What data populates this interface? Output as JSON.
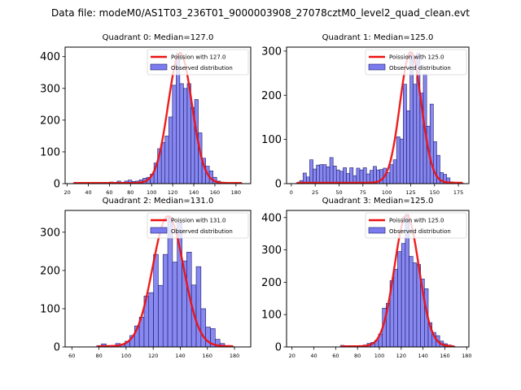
{
  "suptitle": "Data file: modeM0/AS1T03_236T01_9000003908_27078cztM0_level2_quad_clean.evt",
  "colors": {
    "bar_fill": "#7b7bf0",
    "bar_edge": "#1a1a66",
    "line": "#ee1111"
  },
  "chart_data": [
    {
      "type": "bar",
      "title": "Quadrant 0: Median=127.0",
      "legend": [
        "Poission with 127.0",
        "Observed distribution"
      ],
      "legend_placement": "top-right",
      "xlim": [
        18,
        194
      ],
      "ylim": [
        0,
        430
      ],
      "xticks": [
        20,
        40,
        60,
        80,
        100,
        120,
        140,
        160,
        180
      ],
      "yticks": [
        0,
        100,
        200,
        300,
        400
      ],
      "bin_width": 3.5,
      "bins": [
        [
          27,
          1
        ],
        [
          30.5,
          1
        ],
        [
          34,
          1
        ],
        [
          37.5,
          1
        ],
        [
          41,
          1
        ],
        [
          44.5,
          2
        ],
        [
          48,
          2
        ],
        [
          51.5,
          2
        ],
        [
          55,
          3
        ],
        [
          58.5,
          3
        ],
        [
          62,
          5
        ],
        [
          65.5,
          3
        ],
        [
          69,
          8
        ],
        [
          72.5,
          4
        ],
        [
          76,
          8
        ],
        [
          79.5,
          11
        ],
        [
          83,
          7
        ],
        [
          86.5,
          8
        ],
        [
          90,
          12
        ],
        [
          93.5,
          17
        ],
        [
          97,
          20
        ],
        [
          100.5,
          30
        ],
        [
          104,
          65
        ],
        [
          107.5,
          110
        ],
        [
          111,
          130
        ],
        [
          114.5,
          150
        ],
        [
          118,
          210
        ],
        [
          121.5,
          310
        ],
        [
          125,
          410
        ],
        [
          128.5,
          315
        ],
        [
          132,
          300
        ],
        [
          135.5,
          315
        ],
        [
          139,
          240
        ],
        [
          142.5,
          265
        ],
        [
          146,
          160
        ],
        [
          149.5,
          80
        ],
        [
          153,
          55
        ],
        [
          156.5,
          40
        ],
        [
          160,
          20
        ],
        [
          163.5,
          8
        ],
        [
          167,
          4
        ],
        [
          170.5,
          2
        ],
        [
          174,
          1
        ],
        [
          177.5,
          1
        ],
        [
          181,
          1
        ],
        [
          184.5,
          1
        ]
      ],
      "poisson_mean": 127.0,
      "poisson_peak": 410
    },
    {
      "type": "bar",
      "title": "Quadrant 1: Median=125.0",
      "legend": [
        "Poission with 125.0",
        "Observed distribution"
      ],
      "legend_placement": "top-right",
      "xlim": [
        -5,
        186
      ],
      "ylim": [
        0,
        309
      ],
      "xticks": [
        0,
        25,
        50,
        75,
        100,
        125,
        150,
        175
      ],
      "yticks": [
        0,
        100,
        200,
        300
      ],
      "bin_width": 3.5,
      "bins": [
        [
          7,
          2
        ],
        [
          10.5,
          7
        ],
        [
          14,
          24
        ],
        [
          17.5,
          15
        ],
        [
          21,
          54
        ],
        [
          24.5,
          33
        ],
        [
          28,
          42
        ],
        [
          31.5,
          43
        ],
        [
          35,
          43
        ],
        [
          38.5,
          38
        ],
        [
          42,
          59
        ],
        [
          45.5,
          40
        ],
        [
          49,
          31
        ],
        [
          52.5,
          28
        ],
        [
          56,
          36
        ],
        [
          59.5,
          23
        ],
        [
          63,
          36
        ],
        [
          66.5,
          18
        ],
        [
          70,
          35
        ],
        [
          73.5,
          31
        ],
        [
          77,
          36
        ],
        [
          80.5,
          22
        ],
        [
          84,
          30
        ],
        [
          87.5,
          39
        ],
        [
          91,
          31
        ],
        [
          94.5,
          32
        ],
        [
          98,
          35
        ],
        [
          101.5,
          25
        ],
        [
          105,
          43
        ],
        [
          108.5,
          54
        ],
        [
          112,
          106
        ],
        [
          115.5,
          101
        ],
        [
          119,
          225
        ],
        [
          122.5,
          165
        ],
        [
          126,
          295
        ],
        [
          129.5,
          225
        ],
        [
          133,
          295
        ],
        [
          136.5,
          205
        ],
        [
          140,
          248
        ],
        [
          143.5,
          130
        ],
        [
          147,
          180
        ],
        [
          150.5,
          95
        ],
        [
          154,
          64
        ],
        [
          157.5,
          25
        ],
        [
          161,
          21
        ],
        [
          164.5,
          13
        ],
        [
          168,
          4
        ],
        [
          171.5,
          1
        ],
        [
          175,
          1
        ],
        [
          178.5,
          1
        ]
      ],
      "poisson_mean": 125.0,
      "poisson_peak": 296
    },
    {
      "type": "bar",
      "title": "Quadrant 2: Median=131.0",
      "legend": [
        "Poission with 131.0",
        "Observed distribution"
      ],
      "legend_placement": "top-right",
      "xlim": [
        55,
        192
      ],
      "ylim": [
        0,
        357
      ],
      "xticks": [
        60,
        80,
        100,
        120,
        140,
        160,
        180
      ],
      "yticks": [
        0,
        100,
        200,
        300
      ],
      "bin_width": 3.5,
      "bins": [
        [
          80,
          3
        ],
        [
          83.5,
          8
        ],
        [
          87,
          3
        ],
        [
          90.5,
          1
        ],
        [
          94,
          9
        ],
        [
          97.5,
          7
        ],
        [
          101,
          15
        ],
        [
          104.5,
          30
        ],
        [
          108,
          55
        ],
        [
          111.5,
          78
        ],
        [
          115,
          133
        ],
        [
          118.5,
          142
        ],
        [
          122,
          242
        ],
        [
          125.5,
          161
        ],
        [
          129,
          242
        ],
        [
          132.5,
          338
        ],
        [
          136,
          222
        ],
        [
          139.5,
          325
        ],
        [
          143,
          225
        ],
        [
          146.5,
          248
        ],
        [
          150,
          162
        ],
        [
          153.5,
          210
        ],
        [
          157,
          100
        ],
        [
          160.5,
          52
        ],
        [
          164,
          48
        ],
        [
          167.5,
          20
        ],
        [
          171,
          9
        ],
        [
          174.5,
          2
        ],
        [
          178,
          1
        ]
      ],
      "poisson_mean": 131.0,
      "poisson_peak": 340
    },
    {
      "type": "bar",
      "title": "Quadrant 3: Median=125.0",
      "legend": [
        "Poission with 125.0",
        "Observed distribution"
      ],
      "legend_placement": "top-right",
      "xlim": [
        15,
        182
      ],
      "ylim": [
        0,
        422
      ],
      "xticks": [
        20,
        40,
        60,
        80,
        100,
        120,
        140,
        160,
        180
      ],
      "yticks": [
        0,
        100,
        200,
        300,
        400
      ],
      "bin_width": 3.5,
      "bins": [
        [
          66,
          5
        ],
        [
          69.5,
          3
        ],
        [
          73,
          3
        ],
        [
          76.5,
          3
        ],
        [
          80,
          2
        ],
        [
          83.5,
          4
        ],
        [
          87,
          6
        ],
        [
          90.5,
          11
        ],
        [
          94,
          14
        ],
        [
          97.5,
          20
        ],
        [
          101,
          40
        ],
        [
          104.5,
          120
        ],
        [
          108,
          135
        ],
        [
          111.5,
          205
        ],
        [
          115,
          240
        ],
        [
          118.5,
          295
        ],
        [
          122,
          320
        ],
        [
          125.5,
          410
        ],
        [
          129,
          280
        ],
        [
          132.5,
          260
        ],
        [
          136,
          255
        ],
        [
          139.5,
          210
        ],
        [
          143,
          180
        ],
        [
          146.5,
          75
        ],
        [
          150,
          45
        ],
        [
          153.5,
          35
        ],
        [
          157,
          18
        ],
        [
          160.5,
          10
        ],
        [
          164,
          6
        ],
        [
          167.5,
          2
        ]
      ],
      "poisson_mean": 125.0,
      "poisson_peak": 405
    }
  ]
}
